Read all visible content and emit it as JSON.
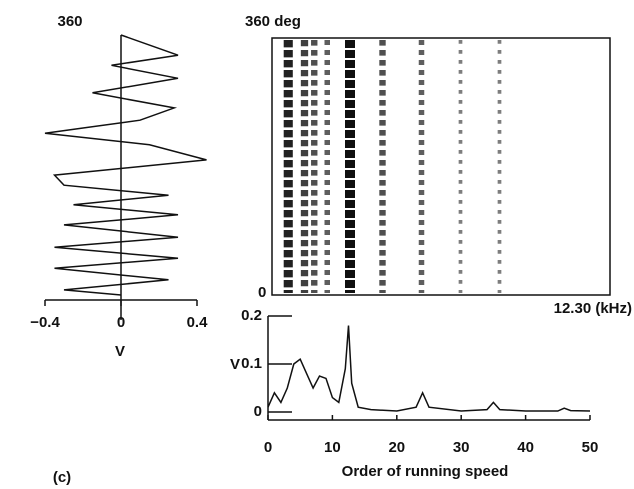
{
  "chart_data": [
    {
      "type": "waveform",
      "orientation": "vertical",
      "color": "#111",
      "x": [
        360,
        332,
        318,
        300,
        280,
        259,
        242,
        224,
        208,
        187,
        166,
        152,
        138,
        125,
        111,
        97,
        80,
        66,
        51,
        37,
        21,
        7,
        0
      ],
      "values": [
        0,
        0.3,
        -0.05,
        0.3,
        -0.15,
        0.28,
        0.1,
        -0.4,
        0.15,
        0.45,
        -0.35,
        -0.3,
        0.25,
        -0.25,
        0.3,
        -0.3,
        0.3,
        -0.35,
        0.3,
        -0.35,
        0.25,
        -0.3,
        0
      ],
      "xlim": [
        0,
        360
      ],
      "xticks": [
        360
      ],
      "ylim": [
        -0.4,
        0.4
      ],
      "yticks": [
        {
          "value": -0.4,
          "label": "−0.4"
        },
        0,
        0.4
      ],
      "ylabel": "V"
    },
    {
      "type": "order-map",
      "top_label": "360 deg",
      "bottom_label": "0",
      "right_label": "12.30 (kHz)",
      "x": [
        2.5,
        5,
        6.5,
        8.5,
        12,
        17,
        23,
        29,
        35
      ],
      "values": [
        0.9,
        0.7,
        0.6,
        0.5,
        1,
        0.6,
        0.5,
        0.3,
        0.3
      ],
      "xlim": [
        0,
        52
      ],
      "color": "#111"
    },
    {
      "type": "line",
      "color": "#111",
      "x": [
        0,
        1,
        2,
        3,
        4,
        5,
        6,
        7,
        8,
        9,
        10,
        11,
        12,
        12.5,
        13,
        14,
        16,
        20,
        23,
        24,
        25,
        30,
        34,
        35,
        36,
        40,
        45,
        46,
        47,
        50
      ],
      "values": [
        0.01,
        0.04,
        0.02,
        0.05,
        0.1,
        0.11,
        0.08,
        0.05,
        0.075,
        0.07,
        0.03,
        0.02,
        0.09,
        0.18,
        0.06,
        0.01,
        0.005,
        0.002,
        0.01,
        0.04,
        0.01,
        0.002,
        0.005,
        0.02,
        0.005,
        0.002,
        0.002,
        0.008,
        0.003,
        0.002
      ],
      "xlim": [
        0,
        50
      ],
      "xticks": [
        0,
        10,
        20,
        30,
        40,
        50
      ],
      "ylim": [
        0,
        0.2
      ],
      "yticks": [
        0,
        0.1,
        0.2
      ],
      "ylabel": "V",
      "xlabel": "Order of running speed",
      "panel_label": "(c)"
    }
  ]
}
